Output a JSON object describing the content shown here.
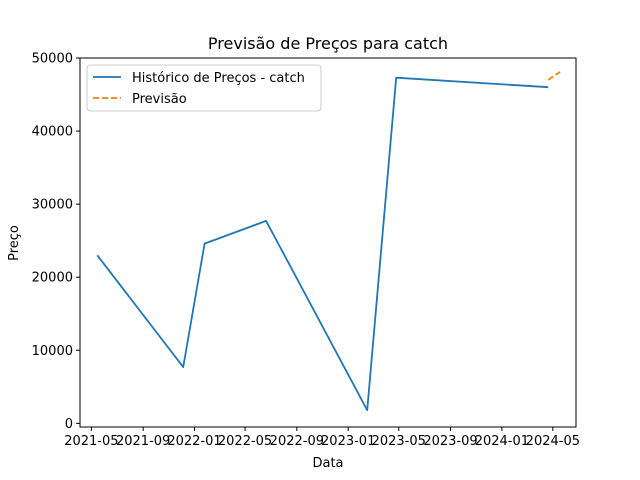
{
  "chart_data": {
    "type": "line",
    "title": "Previsão de Preços para catch",
    "xlabel": "Data",
    "ylabel": "Preço",
    "x_ticks": [
      "2021-05",
      "2021-09",
      "2022-01",
      "2022-05",
      "2022-09",
      "2023-01",
      "2023-05",
      "2023-09",
      "2024-01",
      "2024-05"
    ],
    "y_ticks": [
      0,
      10000,
      20000,
      30000,
      40000,
      50000
    ],
    "ylim": [
      -500,
      50000
    ],
    "xlim": [
      "2021-04-04",
      "2024-06-25"
    ],
    "grid": false,
    "legend_position": "top-left",
    "series": [
      {
        "name": "Histórico de Preços - catch",
        "color": "#1f77b4",
        "style": "solid",
        "points": [
          {
            "x": "2021-05-15",
            "y": 23000
          },
          {
            "x": "2021-12-05",
            "y": 7700
          },
          {
            "x": "2022-01-25",
            "y": 24600
          },
          {
            "x": "2022-06-20",
            "y": 27700
          },
          {
            "x": "2023-02-15",
            "y": 1800
          },
          {
            "x": "2023-04-25",
            "y": 47300
          },
          {
            "x": "2024-04-20",
            "y": 46000
          }
        ]
      },
      {
        "name": "Previsão",
        "color": "#ff7f0e",
        "style": "dashed",
        "points": [
          {
            "x": "2024-04-20",
            "y": 47000
          },
          {
            "x": "2024-05-18",
            "y": 48100
          }
        ]
      }
    ]
  }
}
